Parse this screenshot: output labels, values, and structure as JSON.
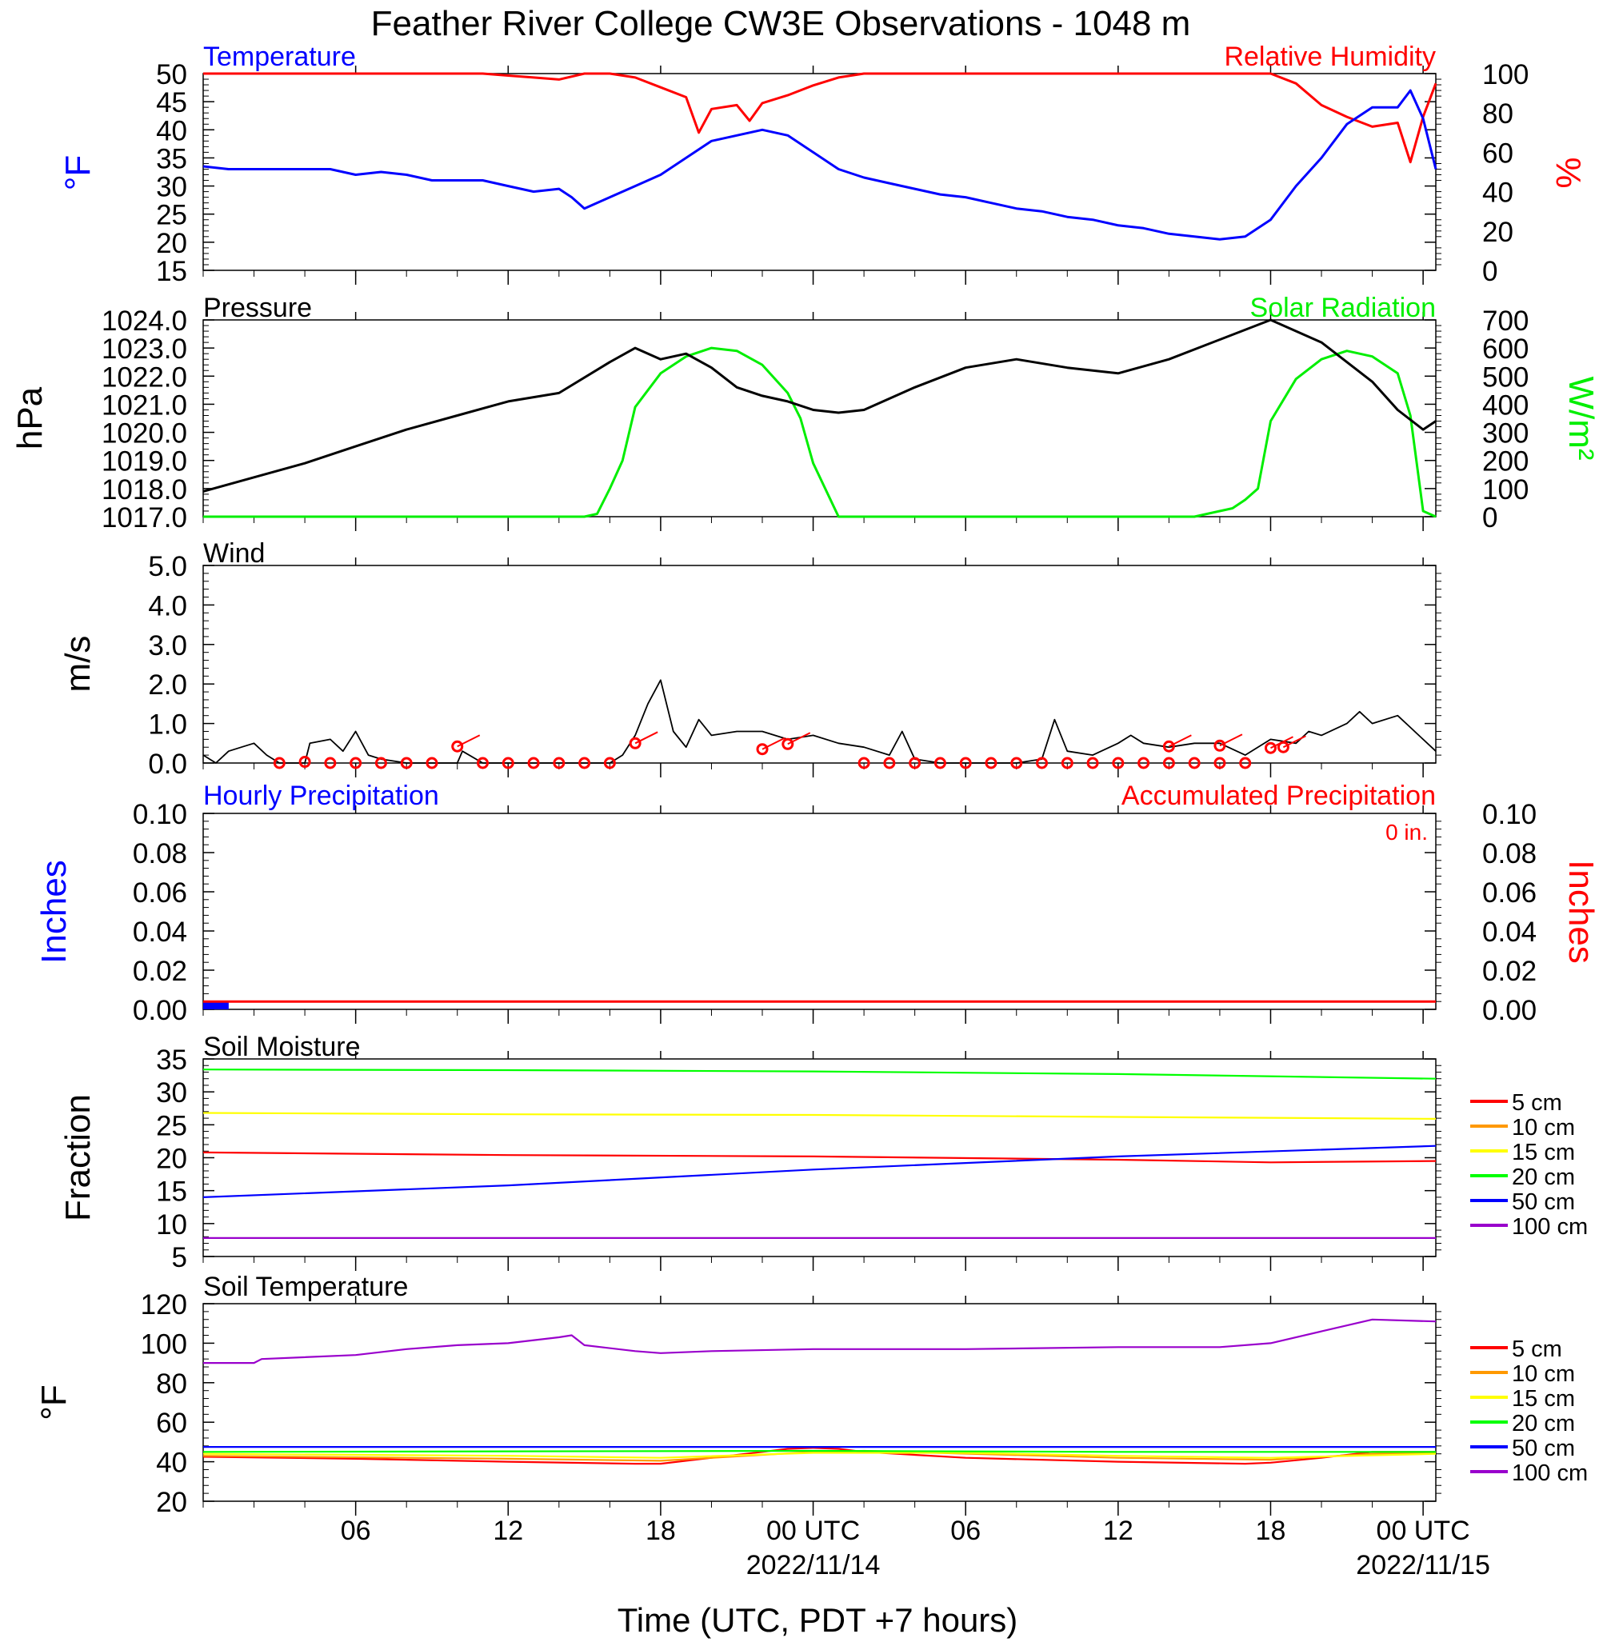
{
  "title": "Feather River College CW3E Observations - 1048 m",
  "x_axis": {
    "label": "Time (UTC, PDT +7 hours)",
    "ticks": [
      {
        "hour": 6,
        "label": "06",
        "sub": ""
      },
      {
        "hour": 12,
        "label": "12",
        "sub": ""
      },
      {
        "hour": 18,
        "label": "18",
        "sub": ""
      },
      {
        "hour": 24,
        "label": "00 UTC",
        "sub": "2022/11/14"
      },
      {
        "hour": 30,
        "label": "06",
        "sub": ""
      },
      {
        "hour": 36,
        "label": "12",
        "sub": ""
      },
      {
        "hour": 42,
        "label": "18",
        "sub": ""
      },
      {
        "hour": 48,
        "label": "00 UTC",
        "sub": "2022/11/15"
      }
    ]
  },
  "panels": {
    "temp_rh": {
      "left_title": "Temperature",
      "right_title": "Relative Humidity",
      "left_unit": "°F",
      "right_unit": "%",
      "left_ticks": [
        "15",
        "20",
        "25",
        "30",
        "35",
        "40",
        "45",
        "50"
      ],
      "right_ticks": [
        "0",
        "20",
        "40",
        "60",
        "80",
        "100"
      ]
    },
    "pressure_solar": {
      "left_title": "Pressure",
      "right_title": "Solar Radiation",
      "left_unit": "hPa",
      "right_unit": "W/m²",
      "left_ticks": [
        "1017.0",
        "1018.0",
        "1019.0",
        "1020.0",
        "1021.0",
        "1022.0",
        "1023.0",
        "1024.0"
      ],
      "right_ticks": [
        "0",
        "100",
        "200",
        "300",
        "400",
        "500",
        "600",
        "700"
      ]
    },
    "wind": {
      "left_title": "Wind",
      "left_unit": "m/s",
      "left_ticks": [
        "0.0",
        "1.0",
        "2.0",
        "3.0",
        "4.0",
        "5.0"
      ]
    },
    "precip": {
      "left_title": "Hourly Precipitation",
      "right_title": "Accumulated Precipitation",
      "left_unit": "Inches",
      "right_unit": "Inches",
      "total_label": "0 in.",
      "left_ticks": [
        "0.00",
        "0.02",
        "0.04",
        "0.06",
        "0.08",
        "0.10"
      ],
      "right_ticks": [
        "0.00",
        "0.02",
        "0.04",
        "0.06",
        "0.08",
        "0.10"
      ]
    },
    "soil_moisture": {
      "left_title": "Soil Moisture",
      "left_unit": "Fraction",
      "left_ticks": [
        "5",
        "10",
        "15",
        "20",
        "25",
        "30",
        "35"
      ],
      "legend": [
        "5 cm",
        "10 cm",
        "15 cm",
        "20 cm",
        "50 cm",
        "100 cm"
      ]
    },
    "soil_temp": {
      "left_title": "Soil Temperature",
      "left_unit": "°F",
      "left_ticks": [
        "20",
        "40",
        "60",
        "80",
        "100",
        "120"
      ],
      "legend": [
        "5 cm",
        "10 cm",
        "15 cm",
        "20 cm",
        "50 cm",
        "100 cm"
      ]
    }
  },
  "colors": {
    "temperature": "#0000ff",
    "humidity": "#ff0000",
    "pressure": "#000000",
    "solar": "#00ee00",
    "wind": "#000000",
    "wind_marker": "#ff0000",
    "hourly_precip": "#0000ff",
    "accum_precip": "#ff0000",
    "depths": [
      "#ff0000",
      "#ff9900",
      "#ffff00",
      "#00ff00",
      "#0000ff",
      "#9900cc"
    ]
  },
  "chart_data": [
    {
      "type": "line",
      "panel": "temp_rh",
      "x_unit": "hours since 2022-11-13 00 UTC",
      "ylim": [
        15,
        50
      ],
      "y2lim": [
        0,
        100
      ],
      "series": [
        {
          "name": "Temperature",
          "axis": "left",
          "x": [
            0,
            1,
            2,
            3,
            4,
            5,
            6,
            7,
            8,
            9,
            10,
            11,
            12,
            13,
            14,
            14.5,
            15,
            16,
            17,
            18,
            19,
            20,
            21,
            22,
            23,
            24,
            25,
            26,
            27,
            28,
            29,
            30,
            31,
            32,
            33,
            34,
            35,
            36,
            37,
            38,
            39,
            40,
            41,
            42,
            43,
            44,
            45,
            46,
            47,
            47.5,
            48,
            48.5
          ],
          "y": [
            33.5,
            33,
            33,
            33,
            33,
            33,
            32,
            32.5,
            32,
            31,
            31,
            31,
            30,
            29,
            29.5,
            28,
            26,
            28,
            30,
            32,
            35,
            38,
            39,
            40,
            39,
            36,
            33,
            31.5,
            30.5,
            29.5,
            28.5,
            28,
            27,
            26,
            25.5,
            24.5,
            24,
            23,
            22.5,
            21.5,
            21,
            20.5,
            21,
            24,
            30,
            35,
            41,
            44,
            44,
            47,
            42,
            33
          ]
        },
        {
          "name": "Relative Humidity",
          "axis": "right",
          "x": [
            0,
            2,
            4,
            6,
            8,
            10,
            11,
            12,
            13,
            14,
            15,
            16,
            17,
            18,
            19,
            19.5,
            20,
            21,
            21.5,
            22,
            23,
            24,
            25,
            26,
            27,
            28,
            30,
            32,
            34,
            36,
            38,
            40,
            42,
            43,
            44,
            45,
            46,
            47,
            47.5,
            48,
            48.5
          ],
          "y": [
            100,
            100,
            100,
            100,
            100,
            100,
            100,
            99,
            98,
            97,
            100,
            100,
            98,
            93,
            88,
            70,
            82,
            84,
            76,
            85,
            89,
            94,
            98,
            100,
            100,
            100,
            100,
            100,
            100,
            100,
            100,
            100,
            100,
            95,
            84,
            78,
            73,
            75,
            55,
            78,
            95
          ]
        }
      ]
    },
    {
      "type": "line",
      "panel": "pressure_solar",
      "x_unit": "hours since 2022-11-13 00 UTC",
      "ylim": [
        1017,
        1024
      ],
      "y2lim": [
        0,
        700
      ],
      "series": [
        {
          "name": "Pressure",
          "axis": "left",
          "x": [
            0,
            2,
            4,
            6,
            8,
            10,
            12,
            14,
            16,
            17,
            18,
            19,
            20,
            21,
            22,
            23,
            24,
            25,
            26,
            28,
            30,
            32,
            34,
            36,
            38,
            40,
            42,
            44,
            46,
            47,
            48,
            48.5
          ],
          "y": [
            1017.9,
            1018.4,
            1018.9,
            1019.5,
            1020.1,
            1020.6,
            1021.1,
            1021.4,
            1022.5,
            1023.0,
            1022.6,
            1022.8,
            1022.3,
            1021.6,
            1021.3,
            1021.1,
            1020.8,
            1020.7,
            1020.8,
            1021.6,
            1022.3,
            1022.6,
            1022.3,
            1022.1,
            1022.6,
            1023.3,
            1024.0,
            1023.2,
            1021.8,
            1020.8,
            1020.1,
            1020.4
          ]
        },
        {
          "name": "Solar Radiation",
          "axis": "right",
          "x": [
            0,
            14,
            15,
            15.5,
            16,
            16.5,
            17,
            18,
            19,
            20,
            21,
            22,
            23,
            23.5,
            24,
            25,
            38,
            39,
            40,
            40.5,
            41,
            41.5,
            42,
            43,
            44,
            45,
            46,
            47,
            47.5,
            48,
            48.5
          ],
          "y": [
            0,
            0,
            0,
            10,
            100,
            200,
            390,
            510,
            570,
            600,
            590,
            540,
            440,
            350,
            190,
            0,
            0,
            0,
            20,
            30,
            60,
            100,
            340,
            490,
            560,
            590,
            570,
            510,
            360,
            20,
            0
          ]
        }
      ]
    },
    {
      "type": "line",
      "panel": "wind",
      "x_unit": "hours since 2022-11-13 00 UTC",
      "ylim": [
        0,
        5
      ],
      "series": [
        {
          "name": "Wind",
          "x": [
            0,
            0.5,
            1,
            1.5,
            2,
            2.5,
            3,
            4,
            4.2,
            5,
            5.5,
            6,
            6.5,
            7,
            8,
            9,
            10,
            10.2,
            11,
            12,
            13,
            14,
            15,
            16,
            16.5,
            17,
            17.5,
            18,
            18.5,
            19,
            19.5,
            20,
            21,
            22,
            23,
            24,
            25,
            26,
            27,
            27.5,
            28,
            29,
            30,
            31,
            32,
            33,
            33.5,
            34,
            35,
            36,
            36.5,
            37,
            38,
            39,
            40,
            41,
            42,
            43,
            43.5,
            44,
            45,
            45.5,
            46,
            47,
            47.5,
            48,
            48.5
          ],
          "y": [
            0.2,
            0,
            0.3,
            0.4,
            0.5,
            0.2,
            0,
            0,
            0.5,
            0.6,
            0.3,
            0.8,
            0.2,
            0.1,
            0,
            0,
            0,
            0.3,
            0,
            0,
            0,
            0,
            0,
            0,
            0.2,
            0.7,
            1.5,
            2.1,
            0.8,
            0.4,
            1.1,
            0.7,
            0.8,
            0.8,
            0.6,
            0.7,
            0.5,
            0.4,
            0.2,
            0.8,
            0.1,
            0,
            0,
            0,
            0,
            0.1,
            1.1,
            0.3,
            0.2,
            0.5,
            0.7,
            0.5,
            0.4,
            0.5,
            0.5,
            0.2,
            0.6,
            0.5,
            0.8,
            0.7,
            1.0,
            1.3,
            1.0,
            1.2,
            0.9,
            0.6,
            0.3
          ]
        },
        {
          "name": "Calm marks",
          "x": [
            3,
            4,
            5,
            6,
            7,
            8,
            9,
            11,
            12,
            13,
            14,
            15,
            16,
            26,
            27,
            28,
            29,
            30,
            31,
            32,
            33,
            34,
            35,
            36,
            37,
            38,
            39,
            40,
            41
          ],
          "y": [
            0,
            0.03,
            0,
            0,
            0,
            0,
            0,
            0,
            0,
            0,
            0,
            0,
            0,
            0,
            0,
            0,
            0,
            0,
            0,
            0,
            0,
            0,
            0,
            0,
            0,
            0,
            0,
            0,
            0
          ]
        },
        {
          "name": "Wind marks",
          "x": [
            10,
            17,
            22,
            23,
            38,
            40,
            42,
            42.5
          ],
          "y": [
            0.42,
            0.5,
            0.35,
            0.48,
            0.42,
            0.44,
            0.38,
            0.4
          ]
        }
      ]
    },
    {
      "type": "bar",
      "panel": "precip",
      "x_unit": "hours since 2022-11-13 00 UTC",
      "ylim": [
        0,
        0.1
      ],
      "y2lim": [
        0,
        0.1
      ],
      "series": [
        {
          "name": "Hourly Precipitation",
          "x": [
            0.5
          ],
          "y": [
            0.002
          ]
        },
        {
          "name": "Accumulated Precipitation",
          "x": [
            0,
            48.5
          ],
          "y": [
            0.004,
            0.004
          ]
        }
      ]
    },
    {
      "type": "line",
      "panel": "soil_moisture",
      "x_unit": "hours since 2022-11-13 00 UTC",
      "ylim": [
        5,
        35
      ],
      "series": [
        {
          "name": "5 cm",
          "x": [
            0,
            12,
            24,
            36,
            42,
            48.5
          ],
          "y": [
            20.8,
            20.4,
            20.2,
            19.7,
            19.3,
            19.5
          ]
        },
        {
          "name": "15 cm",
          "x": [
            0,
            12,
            24,
            36,
            48.5
          ],
          "y": [
            26.8,
            26.6,
            26.5,
            26.2,
            25.9
          ]
        },
        {
          "name": "20 cm",
          "x": [
            0,
            12,
            24,
            36,
            48.5
          ],
          "y": [
            33.4,
            33.3,
            33.1,
            32.7,
            32.0
          ]
        },
        {
          "name": "50 cm",
          "x": [
            0,
            12,
            24,
            36,
            48.5
          ],
          "y": [
            14.0,
            15.8,
            18.2,
            20.2,
            21.8
          ]
        },
        {
          "name": "100 cm",
          "x": [
            0,
            48.5
          ],
          "y": [
            7.8,
            7.8
          ]
        }
      ]
    },
    {
      "type": "line",
      "panel": "soil_temp",
      "x_unit": "hours since 2022-11-13 00 UTC",
      "ylim": [
        20,
        120
      ],
      "series": [
        {
          "name": "5 cm",
          "x": [
            0,
            6,
            12,
            17,
            18,
            20,
            22,
            23,
            24,
            25,
            26,
            30,
            36,
            41,
            42,
            44,
            46,
            48.5
          ],
          "y": [
            42.5,
            41.5,
            40,
            39,
            39,
            42,
            45,
            46.5,
            47,
            46.5,
            45,
            42,
            40,
            39,
            39.5,
            42,
            45,
            45
          ]
        },
        {
          "name": "10 cm",
          "x": [
            0,
            12,
            18,
            22,
            24,
            26,
            36,
            42,
            46,
            48.5
          ],
          "y": [
            43,
            41.5,
            40.5,
            43.5,
            45,
            45.5,
            42,
            41,
            44,
            44.5
          ]
        },
        {
          "name": "15 cm",
          "x": [
            0,
            12,
            18,
            24,
            30,
            36,
            42,
            48.5
          ],
          "y": [
            44,
            43,
            42,
            44.5,
            44.5,
            43,
            42,
            44
          ]
        },
        {
          "name": "20 cm",
          "x": [
            0,
            24,
            36,
            48.5
          ],
          "y": [
            45,
            45.5,
            45,
            45
          ]
        },
        {
          "name": "50 cm",
          "x": [
            0,
            48.5
          ],
          "y": [
            47.5,
            47.5
          ]
        },
        {
          "name": "100 cm",
          "x": [
            0,
            2,
            2.3,
            6,
            8,
            10,
            12,
            14,
            14.5,
            15,
            17,
            18,
            20,
            24,
            30,
            36,
            40,
            42,
            44,
            46,
            48.5
          ],
          "y": [
            90,
            90,
            92,
            94,
            97,
            99,
            100,
            103,
            104,
            99,
            96,
            95,
            96,
            97,
            97,
            98,
            98,
            100,
            106,
            112,
            111
          ]
        }
      ]
    }
  ]
}
